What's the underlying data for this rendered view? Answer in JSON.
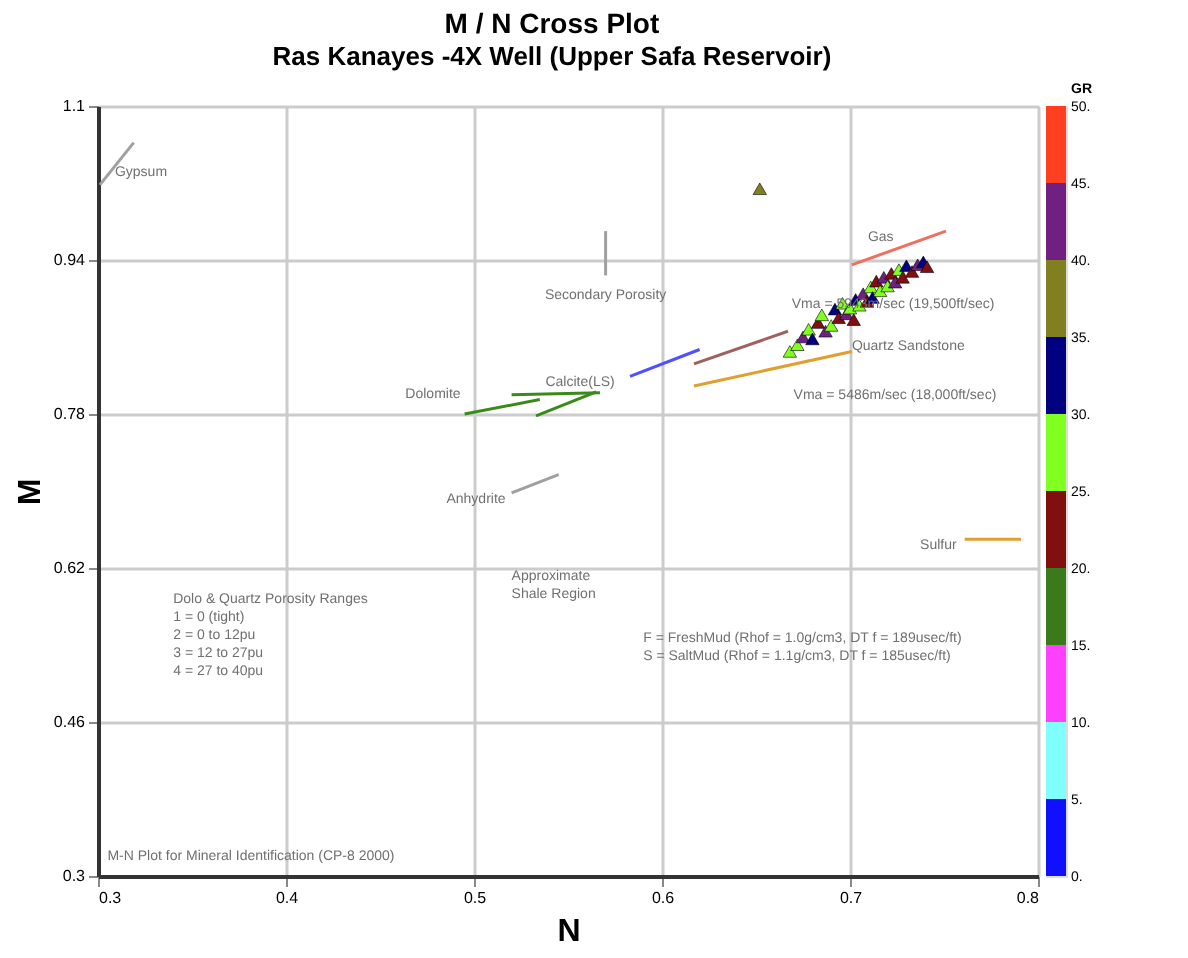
{
  "chart_data": {
    "type": "scatter",
    "title": "M / N Cross Plot",
    "subtitle": "Ras Kanayes -4X Well  (Upper Safa Reservoir)",
    "xlabel": "N",
    "ylabel": "M",
    "clabel": "GR",
    "xlim": [
      0.3,
      0.8
    ],
    "xticks": [
      0.3,
      0.4,
      0.5,
      0.6,
      0.7,
      0.8
    ],
    "ylim": [
      0.3,
      1.1
    ],
    "yticks": [
      0.3,
      0.46,
      0.62,
      0.78,
      0.94,
      1.1
    ],
    "clim": [
      0,
      50
    ],
    "cticks": [
      {
        "value": 0,
        "label": "0."
      },
      {
        "value": 5,
        "label": "5."
      },
      {
        "value": 10,
        "label": "10."
      },
      {
        "value": 15,
        "label": "15."
      },
      {
        "value": 20,
        "label": "20."
      },
      {
        "value": 25,
        "label": "25."
      },
      {
        "value": 30,
        "label": "30."
      },
      {
        "value": 35,
        "label": "35."
      },
      {
        "value": 40,
        "label": "40."
      },
      {
        "value": 45,
        "label": "45."
      },
      {
        "value": 50,
        "label": "50."
      }
    ],
    "colors": [
      "#1010ff",
      "#80ffff",
      "#ff40ff",
      "#3a7a1a",
      "#801010",
      "#80ff20",
      "#000080",
      "#808020",
      "#702080",
      "#ff4020"
    ],
    "grid": true,
    "marker": "triangle",
    "series": [
      {
        "type": "scatter",
        "x": [
          0.652,
          0.668,
          0.672,
          0.675,
          0.678,
          0.68,
          0.683,
          0.685,
          0.687,
          0.69,
          0.692,
          0.694,
          0.696,
          0.698,
          0.7,
          0.702,
          0.703,
          0.705,
          0.707,
          0.709,
          0.711,
          0.712,
          0.714,
          0.716,
          0.718,
          0.72,
          0.722,
          0.724,
          0.726,
          0.728,
          0.73,
          0.733,
          0.736,
          0.739,
          0.741
        ],
        "values": [
          1.014,
          0.845,
          0.852,
          0.86,
          0.868,
          0.858,
          0.875,
          0.883,
          0.866,
          0.872,
          0.889,
          0.88,
          0.895,
          0.884,
          0.89,
          0.878,
          0.899,
          0.893,
          0.905,
          0.897,
          0.912,
          0.901,
          0.918,
          0.908,
          0.922,
          0.913,
          0.926,
          0.917,
          0.93,
          0.922,
          0.934,
          0.928,
          0.935,
          0.938,
          0.933
        ],
        "colors": [
          "#808020",
          "#80ff20",
          "#80ff20",
          "#702080",
          "#80ff20",
          "#000080",
          "#801010",
          "#80ff20",
          "#702080",
          "#80ff20",
          "#000080",
          "#801010",
          "#80ff20",
          "#702080",
          "#80ff20",
          "#801010",
          "#000080",
          "#80ff20",
          "#702080",
          "#801010",
          "#80ff20",
          "#000080",
          "#801010",
          "#80ff20",
          "#702080",
          "#80ff20",
          "#801010",
          "#702080",
          "#80ff20",
          "#801010",
          "#000080",
          "#801010",
          "#702080",
          "#000080",
          "#801010"
        ]
      },
      {
        "type": "line",
        "marker": "none",
        "color": "#a0a0a0",
        "x": [
          0.301,
          0.319
        ],
        "values": [
          1.018,
          1.062
        ]
      },
      {
        "type": "line",
        "marker": "none",
        "color": "#3a8a1a",
        "x": [
          0.495,
          0.535
        ],
        "values": [
          0.78,
          0.795
        ]
      },
      {
        "type": "line",
        "marker": "none",
        "color": "#3a8a1a",
        "x": [
          0.52,
          0.567
        ],
        "values": [
          0.8,
          0.802
        ]
      },
      {
        "type": "line",
        "marker": "none",
        "color": "#3a8a1a",
        "x": [
          0.533,
          0.565
        ],
        "values": [
          0.778,
          0.803
        ]
      },
      {
        "type": "line",
        "marker": "none",
        "color": "#5050ff",
        "x": [
          0.583,
          0.62
        ],
        "values": [
          0.819,
          0.847
        ]
      },
      {
        "type": "line",
        "marker": "none",
        "color": "#a06060",
        "x": [
          0.617,
          0.667
        ],
        "values": [
          0.832,
          0.866
        ]
      },
      {
        "type": "line",
        "marker": "none",
        "color": "#e0a030",
        "x": [
          0.617,
          0.701
        ],
        "values": [
          0.809,
          0.845
        ]
      },
      {
        "type": "line",
        "marker": "none",
        "color": "#a0a0a0",
        "x": [
          0.52,
          0.545
        ],
        "values": [
          0.698,
          0.717
        ]
      },
      {
        "type": "line",
        "marker": "none",
        "color": "#a0a0a0",
        "x": [
          0.57,
          0.57
        ],
        "values": [
          0.924,
          0.97
        ]
      },
      {
        "type": "line",
        "marker": "none",
        "color": "#f07060",
        "x": [
          0.701,
          0.751
        ],
        "values": [
          0.935,
          0.97
        ]
      },
      {
        "type": "line",
        "marker": "none",
        "color": "#e0a030",
        "x": [
          0.761,
          0.791
        ],
        "values": [
          0.65,
          0.65
        ]
      }
    ],
    "annotations": [
      {
        "text": "Gypsum",
        "x": 0.309,
        "y": 1.031
      },
      {
        "text": "Dolomite",
        "x": 0.495,
        "y": 0.78
      },
      {
        "text": "Calcite(LS)",
        "x": 0.538,
        "y": 0.813
      },
      {
        "text": "Secondary Porosity",
        "x": 0.57,
        "y": 0.924
      },
      {
        "text": "Gas",
        "x": 0.701,
        "y": 0.935
      },
      "Vma = 5943m/sec (19,500ft/sec)",
      {
        "text": "Quartz Sandstone",
        "x": 0.701,
        "y": 0.851
      },
      "Vma = 5486m/sec (18,000ft/sec)",
      {
        "text": "Anhydrite",
        "x": 0.52,
        "y": 0.698
      },
      "Approximate\nShale Region",
      {
        "text": "Sulfur",
        "x": 0.761,
        "y": 0.65
      },
      "Dolo & Quartz Porosity Ranges\n    1 = 0 (tight)\n    2 = 0 to 12pu\n    3 = 12 to 27pu\n    4 = 27 to 40pu",
      "F = FreshMud (Rhof = 1.0g/cm3, DT f = 189usec/ft)\nS = SaltMud (Rhof = 1.1g/cm3, DT f = 185usec/ft)",
      "M-N Plot for Mineral Identification (CP-8 2000)"
    ]
  }
}
